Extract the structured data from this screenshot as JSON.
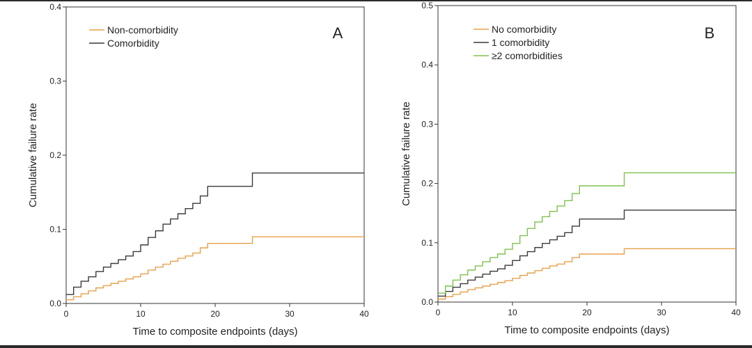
{
  "chart_data": [
    {
      "type": "line",
      "panel_label": "A",
      "xlabel": "Time to composite endpoints (days)",
      "ylabel": "Cumulative failure rate",
      "xlim": [
        0,
        40
      ],
      "ylim": [
        0,
        0.4
      ],
      "xticks": [
        "0",
        "10",
        "20",
        "30",
        "40"
      ],
      "yticks": [
        "0.0",
        "0.1",
        "0.2",
        "0.3",
        "0.4"
      ],
      "grid": false,
      "legend_position": "top-left",
      "series": [
        {
          "name": "Non-comorbidity",
          "color": "#e8a04a",
          "x": [
            0,
            1,
            2,
            3,
            4,
            5,
            6,
            7,
            8,
            9,
            10,
            11,
            12,
            13,
            14,
            15,
            16,
            17,
            18,
            19,
            25,
            40
          ],
          "y": [
            0.005,
            0.009,
            0.013,
            0.017,
            0.021,
            0.024,
            0.027,
            0.03,
            0.033,
            0.036,
            0.04,
            0.045,
            0.049,
            0.053,
            0.057,
            0.061,
            0.064,
            0.068,
            0.075,
            0.081,
            0.09,
            0.09
          ]
        },
        {
          "name": "Comorbidity",
          "color": "#3a3a3a",
          "x": [
            0,
            1,
            2,
            3,
            4,
            5,
            6,
            7,
            8,
            9,
            10,
            11,
            12,
            13,
            14,
            15,
            16,
            17,
            18,
            19,
            25,
            40
          ],
          "y": [
            0.012,
            0.022,
            0.03,
            0.036,
            0.043,
            0.049,
            0.054,
            0.059,
            0.064,
            0.07,
            0.079,
            0.089,
            0.098,
            0.107,
            0.114,
            0.121,
            0.128,
            0.135,
            0.145,
            0.158,
            0.176,
            0.176
          ]
        }
      ]
    },
    {
      "type": "line",
      "panel_label": "B",
      "xlabel": "Time to composite endpoints (days)",
      "ylabel": "Cumulative failure rate",
      "xlim": [
        0,
        40
      ],
      "ylim": [
        0,
        0.5
      ],
      "xticks": [
        "0",
        "10",
        "20",
        "30",
        "40"
      ],
      "yticks": [
        "0.0",
        "0.1",
        "0.2",
        "0.3",
        "0.4",
        "0.5"
      ],
      "grid": false,
      "legend_position": "top-left",
      "series": [
        {
          "name": "No comorbidity",
          "color": "#e8a04a",
          "x": [
            0,
            1,
            2,
            3,
            4,
            5,
            6,
            7,
            8,
            9,
            10,
            11,
            12,
            13,
            14,
            15,
            16,
            17,
            18,
            19,
            25,
            40
          ],
          "y": [
            0.005,
            0.009,
            0.013,
            0.017,
            0.021,
            0.024,
            0.027,
            0.03,
            0.033,
            0.036,
            0.04,
            0.045,
            0.049,
            0.053,
            0.057,
            0.061,
            0.064,
            0.068,
            0.075,
            0.081,
            0.09,
            0.09
          ]
        },
        {
          "name": "1 comorbidity",
          "color": "#3a3a3a",
          "x": [
            0,
            1,
            2,
            3,
            4,
            5,
            6,
            7,
            8,
            9,
            10,
            11,
            12,
            13,
            14,
            15,
            16,
            17,
            18,
            19,
            25,
            40
          ],
          "y": [
            0.01,
            0.018,
            0.025,
            0.031,
            0.037,
            0.042,
            0.047,
            0.052,
            0.056,
            0.062,
            0.07,
            0.078,
            0.085,
            0.092,
            0.099,
            0.105,
            0.111,
            0.117,
            0.128,
            0.14,
            0.155,
            0.155
          ]
        },
        {
          "name": "≥2 comorbidities",
          "color": "#7dc24e",
          "x": [
            0,
            1,
            2,
            3,
            4,
            5,
            6,
            7,
            8,
            9,
            10,
            11,
            12,
            13,
            14,
            15,
            16,
            17,
            18,
            19,
            25,
            40
          ],
          "y": [
            0.015,
            0.027,
            0.037,
            0.046,
            0.054,
            0.061,
            0.068,
            0.075,
            0.081,
            0.089,
            0.099,
            0.112,
            0.124,
            0.135,
            0.144,
            0.153,
            0.162,
            0.171,
            0.183,
            0.196,
            0.218,
            0.218
          ]
        }
      ]
    }
  ]
}
